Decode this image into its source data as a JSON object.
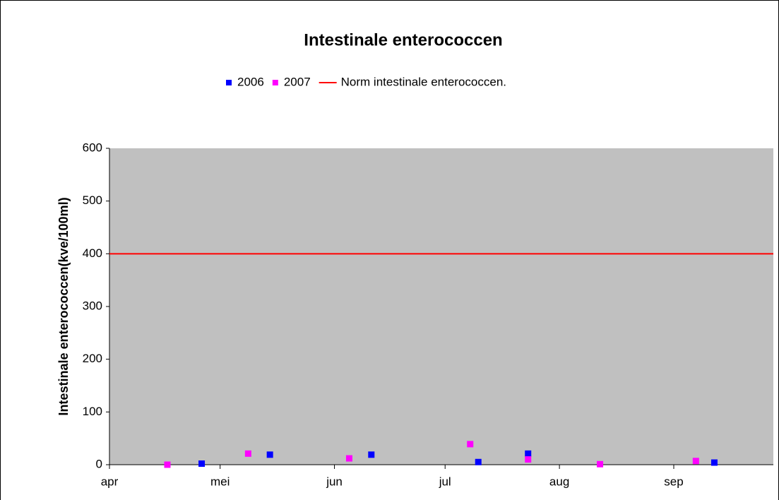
{
  "chart_data": {
    "type": "scatter",
    "title": "Intestinale enterococcen",
    "y_label": "Intestinale enterococcen(kve/100ml)",
    "xlim": [
      0,
      180
    ],
    "xticks": [
      {
        "value": 0,
        "label": "apr"
      },
      {
        "value": 30,
        "label": "mei"
      },
      {
        "value": 61,
        "label": "jun"
      },
      {
        "value": 91,
        "label": "jul"
      },
      {
        "value": 122,
        "label": "aug"
      },
      {
        "value": 153,
        "label": "sep"
      }
    ],
    "ylim": [
      0,
      600
    ],
    "yticks": [
      0,
      100,
      200,
      300,
      400,
      500,
      600
    ],
    "series": [
      {
        "name": "2006",
        "color": "#0000ff",
        "kind": "marker",
        "x": [
          25,
          43.5,
          71,
          100,
          113.5,
          164
        ],
        "values": [
          2,
          19,
          19,
          5,
          21,
          4
        ]
      },
      {
        "name": "2007",
        "color": "#ff00ff",
        "kind": "marker",
        "x": [
          15.7,
          37.6,
          65,
          97.8,
          113.5,
          133,
          159
        ],
        "values": [
          0,
          21,
          12,
          39,
          10,
          1,
          7
        ]
      },
      {
        "name": "Norm intestinale enterococcen.",
        "color": "#ff0000",
        "kind": "line",
        "x": [
          0,
          180
        ],
        "values": [
          400,
          400
        ]
      }
    ]
  }
}
